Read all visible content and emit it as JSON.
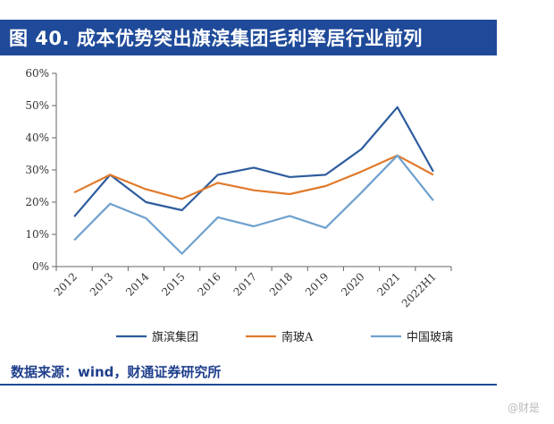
{
  "title": "图 40. 成本优势突出旗滨集团毛利率居行业前列",
  "source": "数据来源：wind，财通证券研究所",
  "watermark": "@财是",
  "chart_data": {
    "type": "line",
    "categories": [
      "2012",
      "2013",
      "2014",
      "2015",
      "2016",
      "2017",
      "2018",
      "2019",
      "2020",
      "2021",
      "2022H1"
    ],
    "y_ticks": [
      "0%",
      "10%",
      "20%",
      "30%",
      "40%",
      "50%",
      "60%"
    ],
    "ylim": [
      0,
      60
    ],
    "grid": false,
    "legend_position": "bottom",
    "series": [
      {
        "name": "旗滨集团",
        "color": "#2e5c9e",
        "values": [
          15.5,
          28.5,
          20,
          17.5,
          28.5,
          30.7,
          27.8,
          28.5,
          36.5,
          49.5,
          29.5
        ]
      },
      {
        "name": "南玻A",
        "color": "#e07a2c",
        "values": [
          23,
          28.5,
          24,
          21,
          26,
          23.7,
          22.5,
          25,
          29.5,
          34.5,
          28.5
        ]
      },
      {
        "name": "中国玻璃",
        "color": "#6ea1ce",
        "values": [
          8.2,
          19.5,
          15,
          4,
          15.3,
          12.5,
          15.7,
          12,
          23,
          34.5,
          20.5
        ]
      }
    ]
  }
}
